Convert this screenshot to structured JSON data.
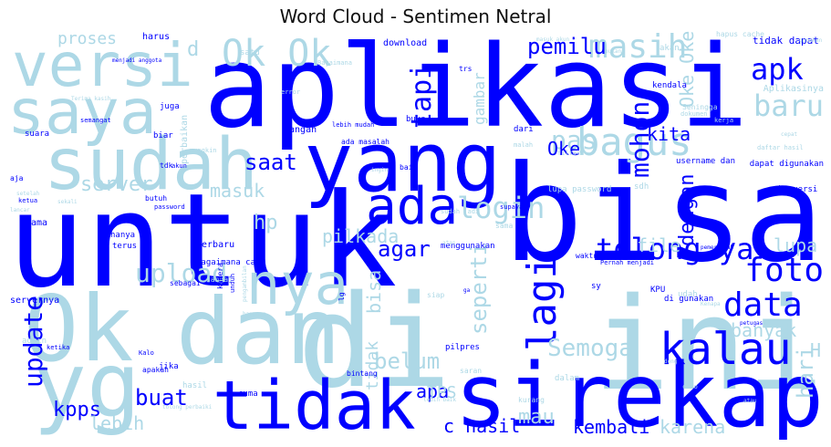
{
  "title": "Word Cloud - Sentimen Netral",
  "palette": {
    "dark": "#0000ff",
    "light": "#add8e6"
  },
  "words": [
    {
      "text": "aplikasi",
      "tone": "dark",
      "size": "xl"
    },
    {
      "text": "untuk",
      "tone": "dark",
      "size": "xl"
    },
    {
      "text": "bisa",
      "tone": "dark",
      "size": "xl"
    },
    {
      "text": "di",
      "tone": "light",
      "size": "xl"
    },
    {
      "text": "ini",
      "tone": "light",
      "size": "xl"
    },
    {
      "text": "Ok",
      "tone": "light",
      "size": "l"
    },
    {
      "text": "dan",
      "tone": "light",
      "size": "l"
    },
    {
      "text": "yg",
      "tone": "light",
      "size": "l"
    },
    {
      "text": "sirekap",
      "tone": "dark",
      "size": "l"
    },
    {
      "text": "yang",
      "tone": "dark",
      "size": "l"
    },
    {
      "text": "sudah",
      "tone": "light",
      "size": "l"
    },
    {
      "text": "saya",
      "tone": "light",
      "size": "l"
    },
    {
      "text": "versi",
      "tone": "light",
      "size": "l"
    },
    {
      "text": "tidak",
      "tone": "dark",
      "size": "l"
    },
    {
      "text": "nya",
      "tone": "light",
      "size": "m"
    },
    {
      "text": "ada",
      "tone": "dark",
      "size": "m"
    },
    {
      "text": "bagus",
      "tone": "light",
      "size": "m"
    },
    {
      "text": "kalau",
      "tone": "dark",
      "size": "m"
    },
    {
      "text": "lagi",
      "tone": "dark",
      "size": "m"
    },
    {
      "text": "Ok Ok",
      "tone": "light",
      "size": "m"
    },
    {
      "text": "apk",
      "tone": "dark",
      "size": "m"
    },
    {
      "text": "masih",
      "tone": "light",
      "size": "m"
    },
    {
      "text": "tolong ya",
      "tone": "dark",
      "size": "m"
    },
    {
      "text": "data",
      "tone": "dark",
      "size": "m"
    },
    {
      "text": "foto",
      "tone": "dark",
      "size": "m"
    },
    {
      "text": "login",
      "tone": "light",
      "size": "m"
    },
    {
      "text": "update",
      "tone": "dark",
      "size": "m"
    },
    {
      "text": "baru",
      "tone": "light",
      "size": "m"
    },
    {
      "text": "tapi",
      "tone": "dark",
      "size": "m"
    },
    {
      "text": "Semoga",
      "tone": "light",
      "size": "m"
    },
    {
      "text": "pas",
      "tone": "light",
      "size": "m"
    },
    {
      "text": "upload",
      "tone": "light",
      "size": "m"
    },
    {
      "text": "mohon",
      "tone": "dark",
      "size": "m"
    },
    {
      "text": "agar",
      "tone": "dark",
      "size": "s"
    },
    {
      "text": "belum",
      "tone": "light",
      "size": "s"
    },
    {
      "text": "buat",
      "tone": "dark",
      "size": "s"
    },
    {
      "text": "saat",
      "tone": "dark",
      "size": "s"
    },
    {
      "text": "pemilu",
      "tone": "dark",
      "size": "s"
    },
    {
      "text": "kita",
      "tone": "dark",
      "size": "s"
    },
    {
      "text": "Oke",
      "tone": "dark",
      "size": "s"
    },
    {
      "text": "dengan",
      "tone": "dark",
      "size": "s"
    },
    {
      "text": "seperti",
      "tone": "light",
      "size": "s"
    },
    {
      "text": "server",
      "tone": "light",
      "size": "s"
    },
    {
      "text": "masuk",
      "tone": "light",
      "size": "s"
    },
    {
      "text": "pilkada",
      "tone": "light",
      "size": "s"
    },
    {
      "text": "hp",
      "tone": "light",
      "size": "s"
    },
    {
      "text": "file",
      "tone": "light",
      "size": "s"
    },
    {
      "text": "lupa",
      "tone": "light",
      "size": "s"
    },
    {
      "text": "banyak",
      "tone": "light",
      "size": "s"
    },
    {
      "text": "kpps",
      "tone": "dark",
      "size": "s"
    },
    {
      "text": "lebih",
      "tone": "light",
      "size": "s"
    },
    {
      "text": "apa",
      "tone": "dark",
      "size": "s"
    },
    {
      "text": "mau",
      "tone": "light",
      "size": "s"
    },
    {
      "text": "kembali",
      "tone": "dark",
      "size": "s"
    },
    {
      "text": "karena",
      "tone": "light",
      "size": "s"
    },
    {
      "text": "c hasil",
      "tone": "dark",
      "size": "s"
    },
    {
      "text": "hari",
      "tone": "light",
      "size": "s"
    },
    {
      "text": "proses",
      "tone": "light",
      "size": "s"
    },
    {
      "text": "gambar",
      "tone": "light",
      "size": "s"
    },
    {
      "text": "Oke Oke",
      "tone": "light",
      "size": "s"
    },
    {
      "text": "TPS",
      "tone": "light",
      "size": "s"
    },
    {
      "text": "bisa",
      "tone": "light",
      "size": "s"
    },
    {
      "text": "tidak",
      "tone": "light",
      "size": "s"
    },
    {
      "text": "H",
      "tone": "light",
      "size": "s"
    },
    {
      "text": "d",
      "tone": "light",
      "size": "s"
    },
    {
      "text": "tidak dapat",
      "tone": "dark",
      "size": "xs"
    },
    {
      "text": "download",
      "tone": "dark",
      "size": "xs"
    },
    {
      "text": "harus",
      "tone": "dark",
      "size": "xs"
    },
    {
      "text": "perbaikan",
      "tone": "light",
      "size": "xs"
    },
    {
      "text": "terbaru",
      "tone": "dark",
      "size": "xs"
    },
    {
      "text": "hanya",
      "tone": "dark",
      "size": "xs"
    },
    {
      "text": "terus",
      "tone": "dark",
      "size": "xs"
    },
    {
      "text": "lama",
      "tone": "dark",
      "size": "xs"
    },
    {
      "text": "jangan",
      "tone": "dark",
      "size": "xs"
    },
    {
      "text": "satu",
      "tone": "light",
      "size": "xs"
    },
    {
      "text": "juga",
      "tone": "dark",
      "size": "xs"
    },
    {
      "text": "biar",
      "tone": "dark",
      "size": "xs"
    },
    {
      "text": "akan",
      "tone": "light",
      "size": "xs"
    },
    {
      "text": "kendala",
      "tone": "dark",
      "size": "xs"
    },
    {
      "text": "Aplikasinya",
      "tone": "light",
      "size": "xs"
    },
    {
      "text": "dari",
      "tone": "dark",
      "size": "xs"
    },
    {
      "text": "lupa password",
      "tone": "light",
      "size": "xs"
    },
    {
      "text": "username dan",
      "tone": "dark",
      "size": "xs"
    },
    {
      "text": "dapat digunakan",
      "tone": "dark",
      "size": "xs"
    },
    {
      "text": "ke versi",
      "tone": "dark",
      "size": "xs"
    },
    {
      "text": "sdh",
      "tone": "light",
      "size": "xs"
    },
    {
      "text": "supaya",
      "tone": "dark",
      "size": "xs"
    },
    {
      "text": "sama",
      "tone": "light",
      "size": "xs"
    },
    {
      "text": "menggunakan",
      "tone": "dark",
      "size": "xs"
    },
    {
      "text": "waktu",
      "tone": "dark",
      "size": "xs"
    },
    {
      "text": "sy",
      "tone": "dark",
      "size": "xs"
    },
    {
      "text": "KPU",
      "tone": "dark",
      "size": "xs"
    },
    {
      "text": "udah",
      "tone": "light",
      "size": "xs"
    },
    {
      "text": "di gunakan",
      "tone": "dark",
      "size": "xs"
    },
    {
      "text": "pilpres",
      "tone": "dark",
      "size": "xs"
    },
    {
      "text": "Bagaimana cara",
      "tone": "dark",
      "size": "xs"
    },
    {
      "text": "sebagai",
      "tone": "dark",
      "size": "xs"
    },
    {
      "text": "sangat",
      "tone": "light",
      "size": "xs"
    },
    {
      "text": "kamera",
      "tone": "dark",
      "size": "xs"
    },
    {
      "text": "jika",
      "tone": "dark",
      "size": "xs"
    },
    {
      "text": "hasil",
      "tone": "light",
      "size": "xs"
    },
    {
      "text": "cuma",
      "tone": "dark",
      "size": "xs"
    },
    {
      "text": "bintang",
      "tone": "dark",
      "size": "xs"
    },
    {
      "text": "apakah",
      "tone": "dark",
      "size": "xs"
    },
    {
      "text": "dalam",
      "tone": "light",
      "size": "xs"
    },
    {
      "text": "kurang",
      "tone": "light",
      "size": "xs"
    },
    {
      "text": "servernya",
      "tone": "dark",
      "size": "xs"
    },
    {
      "text": "admin",
      "tone": "light",
      "size": "xs"
    },
    {
      "text": "ketika",
      "tone": "dark",
      "size": "xs"
    },
    {
      "text": "Kalo",
      "tone": "dark",
      "size": "xs"
    },
    {
      "text": "butuh",
      "tone": "dark",
      "size": "xs"
    },
    {
      "text": "password",
      "tone": "dark",
      "size": "xs"
    },
    {
      "text": "lebih mudah",
      "tone": "dark",
      "size": "xs"
    },
    {
      "text": "ada masalah",
      "tone": "dark",
      "size": "xs"
    },
    {
      "text": "buka",
      "tone": "dark",
      "size": "xs"
    },
    {
      "text": "lg",
      "tone": "dark",
      "size": "xs"
    },
    {
      "text": "baik",
      "tone": "dark",
      "size": "xs"
    },
    {
      "text": "aja",
      "tone": "dark",
      "size": "xs"
    },
    {
      "text": "suara",
      "tone": "dark",
      "size": "xs"
    },
    {
      "text": "tdk",
      "tone": "dark",
      "size": "xs"
    },
    {
      "text": "Terima kasih",
      "tone": "light",
      "size": "xs"
    },
    {
      "text": "ketua",
      "tone": "dark",
      "size": "xs"
    },
    {
      "text": "saran",
      "tone": "light",
      "size": "xs"
    },
    {
      "text": "siap",
      "tone": "light",
      "size": "xs"
    },
    {
      "text": "Bagaimana",
      "tone": "light",
      "size": "xs"
    },
    {
      "text": "trs",
      "tone": "dark",
      "size": "xs"
    },
    {
      "text": "ga",
      "tone": "dark",
      "size": "xs"
    },
    {
      "text": "cobo",
      "tone": "light",
      "size": "xs"
    },
    {
      "text": "akun",
      "tone": "dark",
      "size": "xs"
    },
    {
      "text": "semangat",
      "tone": "dark",
      "size": "xs"
    },
    {
      "text": "error",
      "tone": "light",
      "size": "xs"
    },
    {
      "text": "menjadi anggota",
      "tone": "dark",
      "size": "xs"
    },
    {
      "text": "pemerintah",
      "tone": "dark",
      "size": "xs"
    },
    {
      "text": "Kenapa",
      "tone": "light",
      "size": "xs"
    },
    {
      "text": "petugas",
      "tone": "dark",
      "size": "xs"
    },
    {
      "text": "daftar hasil",
      "tone": "light",
      "size": "xs"
    },
    {
      "text": "atau",
      "tone": "light",
      "size": "xs"
    },
    {
      "text": "Pernah menjadi",
      "tone": "dark",
      "size": "xs"
    },
    {
      "text": "gunakan",
      "tone": "light",
      "size": "xs"
    },
    {
      "text": "Sehingga",
      "tone": "light",
      "size": "xs"
    },
    {
      "text": "hapus cache",
      "tone": "light",
      "size": "xs"
    },
    {
      "text": "unduh",
      "tone": "dark",
      "size": "xs"
    },
    {
      "text": "pengambilan",
      "tone": "light",
      "size": "xs"
    },
    {
      "text": "bangang",
      "tone": "light",
      "size": "xs"
    },
    {
      "text": "malah",
      "tone": "light",
      "size": "xs"
    },
    {
      "text": "lancar",
      "tone": "light",
      "size": "xs"
    },
    {
      "text": "setelah",
      "tone": "light",
      "size": "xs"
    },
    {
      "text": "dokumen",
      "tone": "light",
      "size": "xs"
    },
    {
      "text": "mungkin",
      "tone": "light",
      "size": "xs"
    },
    {
      "text": "filter",
      "tone": "light",
      "size": "xs"
    },
    {
      "text": "sudah jadi",
      "tone": "light",
      "size": "xs"
    },
    {
      "text": "atas",
      "tone": "light",
      "size": "xs"
    },
    {
      "text": "lebih baik",
      "tone": "light",
      "size": "xs"
    },
    {
      "text": "ingin",
      "tone": "light",
      "size": "xs"
    },
    {
      "text": "kerja",
      "tone": "light",
      "size": "xs"
    },
    {
      "text": "cepat",
      "tone": "light",
      "size": "xs"
    },
    {
      "text": "sekali",
      "tone": "light",
      "size": "xs"
    },
    {
      "text": "tolong perbaiki",
      "tone": "light",
      "size": "xs"
    },
    {
      "text": "masuk akun",
      "tone": "light",
      "size": "xs"
    },
    {
      "text": "bukan",
      "tone": "light",
      "size": "xs"
    },
    {
      "text": "dong",
      "tone": "light",
      "size": "xs"
    }
  ]
}
